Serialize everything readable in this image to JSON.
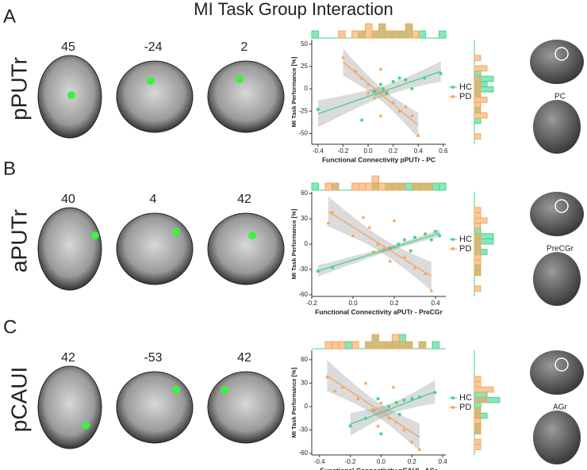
{
  "title": "MI Task Group Interaction",
  "panels": [
    {
      "letter": "A",
      "region": "pPUTr",
      "slices": [
        "45",
        "-24",
        "2"
      ],
      "brain_label": "PC"
    },
    {
      "letter": "B",
      "region": "aPUTr",
      "slices": [
        "40",
        "4",
        "42"
      ],
      "brain_label": "PreCGr"
    },
    {
      "letter": "C",
      "region": "pCAUI",
      "slices": [
        "42",
        "-53",
        "42"
      ],
      "brain_label": "AGr"
    }
  ],
  "chart_data": [
    {
      "type": "scatter",
      "x_label": "Functional Connectivity pPUTr - PC",
      "y_label": "MI Task Performance [%]",
      "xlim": [
        -0.45,
        0.62
      ],
      "xticks": [
        -0.4,
        -0.2,
        {
          "value": 0,
          "label": "0.0"
        },
        0.2,
        0.4,
        0.6
      ],
      "ylim": [
        -62,
        55
      ],
      "yticks": [
        -50,
        -25,
        0,
        25,
        50
      ],
      "series": [
        {
          "name": "HC",
          "color": "#3dd68c",
          "x": [
            -0.4,
            -0.05,
            0.05,
            0.12,
            0.2,
            0.25,
            0.3,
            0.35,
            0.45,
            0.58,
            0.1,
            0.15
          ],
          "values": [
            -23,
            -35,
            -3,
            0,
            8,
            12,
            10,
            0,
            12,
            17,
            5,
            -5
          ]
        },
        {
          "name": "PD",
          "color": "#f5a55a",
          "x": [
            -0.2,
            -0.1,
            -0.05,
            0,
            0.05,
            0.1,
            0.15,
            0.2,
            0.25,
            0.3,
            0.35,
            0.4,
            0.1,
            0
          ],
          "values": [
            35,
            20,
            12,
            5,
            -10,
            22,
            -2,
            -15,
            -25,
            -20,
            -30,
            -52,
            -30,
            -5
          ]
        }
      ]
    },
    {
      "type": "scatter",
      "x_label": "Functional Connectivity aPUTr - PreCGr",
      "y_label": "MI Task Performance [%]",
      "xlim": [
        -0.2,
        0.45
      ],
      "xticks": [
        -0.2,
        {
          "value": 0,
          "label": "0.0"
        },
        0.2,
        0.4
      ],
      "ylim": [
        -62,
        62
      ],
      "yticks": [
        -60,
        -30,
        0,
        30,
        60
      ],
      "series": [
        {
          "name": "HC",
          "color": "#3dd68c",
          "x": [
            -0.17,
            -0.1,
            0.1,
            0.18,
            0.22,
            0.25,
            0.3,
            0.35,
            0.38,
            0.4,
            0.42,
            0.28
          ],
          "values": [
            -32,
            -28,
            -10,
            -5,
            0,
            5,
            8,
            12,
            5,
            15,
            10,
            -8
          ]
        },
        {
          "name": "PD",
          "color": "#f5a55a",
          "x": [
            -0.12,
            -0.1,
            0,
            0.05,
            0.08,
            0.12,
            0.15,
            0.2,
            0.25,
            0.3,
            0.35,
            0.38,
            0.18,
            0.1
          ],
          "values": [
            25,
            38,
            10,
            32,
            20,
            0,
            -5,
            28,
            -15,
            -28,
            -35,
            -55,
            -20,
            -10
          ]
        }
      ]
    },
    {
      "type": "scatter",
      "x_label": "Functional Connectivity pCAUI - AGr",
      "y_label": "MI Task Performance [%]",
      "xlim": [
        -0.45,
        0.42
      ],
      "xticks": [
        -0.4,
        -0.2,
        {
          "value": 0,
          "label": "0.0"
        },
        0.2,
        0.4
      ],
      "ylim": [
        -62,
        72
      ],
      "yticks": [
        -60,
        -30,
        0,
        30,
        60
      ],
      "series": [
        {
          "name": "HC",
          "color": "#3dd68c",
          "x": [
            -0.2,
            -0.1,
            -0.05,
            0,
            0.05,
            0.1,
            0.15,
            0.2,
            0.25,
            0.35,
            -0.02,
            0.12
          ],
          "values": [
            -25,
            -15,
            -5,
            -35,
            0,
            5,
            8,
            10,
            12,
            18,
            10,
            -10
          ]
        },
        {
          "name": "PD",
          "color": "#f5a55a",
          "x": [
            -0.35,
            -0.3,
            -0.25,
            -0.15,
            -0.1,
            -0.05,
            0,
            0.05,
            0.1,
            0.15,
            0.2,
            0.25,
            -0.02,
            0.08
          ],
          "values": [
            38,
            20,
            25,
            10,
            30,
            -5,
            5,
            -15,
            -20,
            -30,
            -45,
            -55,
            -25,
            25
          ]
        }
      ]
    }
  ]
}
